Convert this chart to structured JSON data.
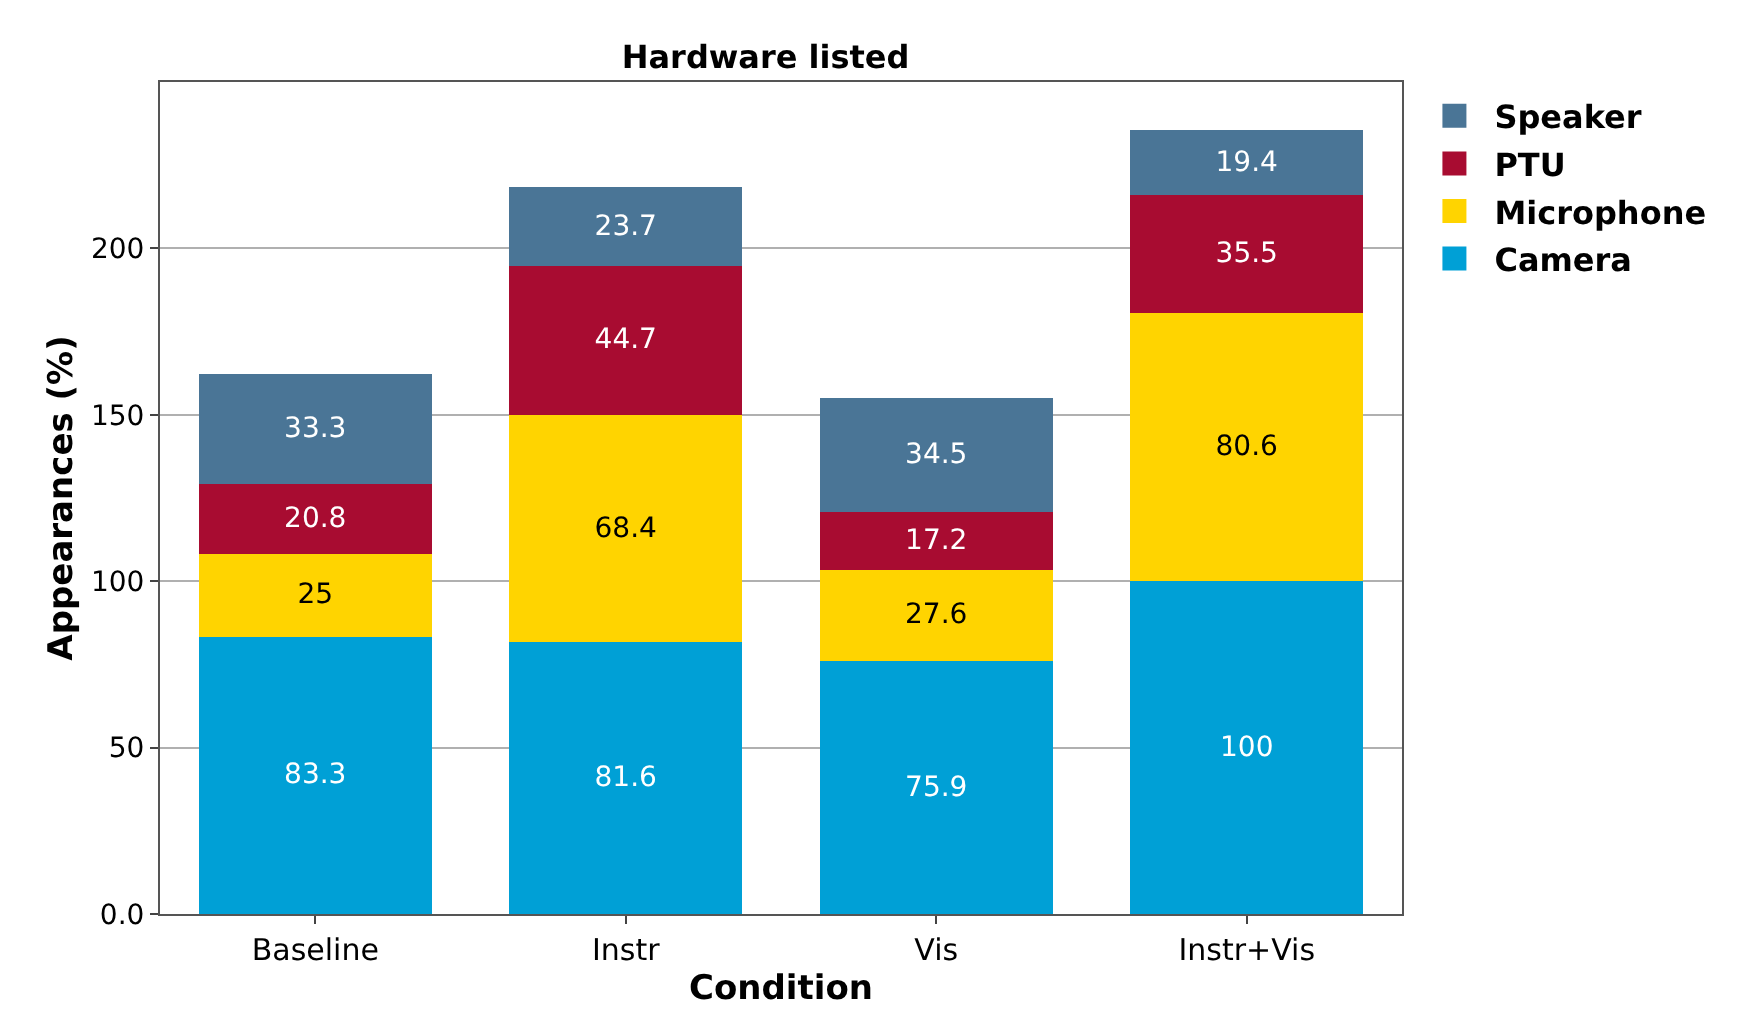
{
  "chart_data": {
    "type": "bar",
    "title": "Hardware listed",
    "xlabel": "Condition",
    "ylabel": "Appearances (%)",
    "categories": [
      "Baseline",
      "Instr",
      "Vis",
      "Instr+Vis"
    ],
    "series": [
      {
        "name": "Camera",
        "color": "#00a0d6",
        "values": [
          83.3,
          81.6,
          75.9,
          100
        ]
      },
      {
        "name": "Microphone",
        "color": "#ffd400",
        "values": [
          25,
          68.4,
          27.6,
          80.6
        ]
      },
      {
        "name": "PTU",
        "color": "#a80c31",
        "values": [
          20.8,
          44.7,
          17.2,
          35.5
        ]
      },
      {
        "name": "Speaker",
        "color": "#4a7596",
        "values": [
          33.3,
          23.7,
          34.5,
          19.4
        ]
      }
    ],
    "stacked": true,
    "data_labels": true,
    "ylim": [
      0,
      250
    ],
    "yticks": [
      {
        "value": 0,
        "label": "0.0"
      },
      50,
      100,
      150,
      200
    ],
    "grid": "y",
    "legend": "top right"
  }
}
